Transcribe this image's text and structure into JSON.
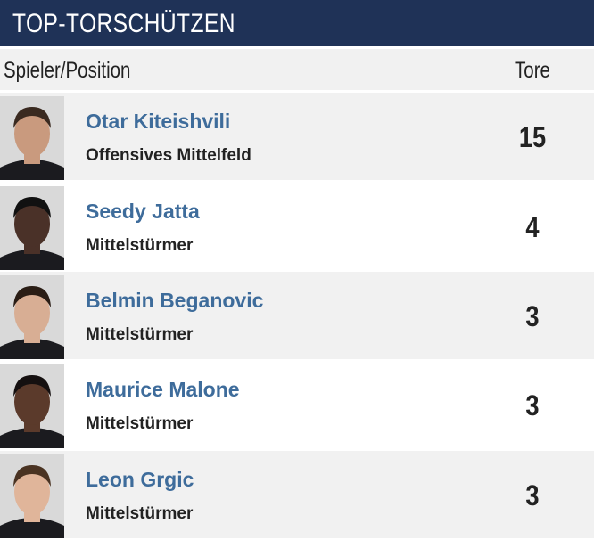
{
  "header": {
    "title": "TOP-TORSCHÜTZEN"
  },
  "table": {
    "columns": [
      "Spieler/Position",
      "Tore"
    ],
    "rows": [
      {
        "name": "Otar Kiteishvili",
        "position": "Offensives Mittelfeld",
        "goals": 15
      },
      {
        "name": "Seedy Jatta",
        "position": "Mittelstürmer",
        "goals": 4
      },
      {
        "name": "Belmin Beganovic",
        "position": "Mittelstürmer",
        "goals": 3
      },
      {
        "name": "Maurice Malone",
        "position": "Mittelstürmer",
        "goals": 3
      },
      {
        "name": "Leon Grgic",
        "position": "Mittelstürmer",
        "goals": 3
      }
    ]
  }
}
